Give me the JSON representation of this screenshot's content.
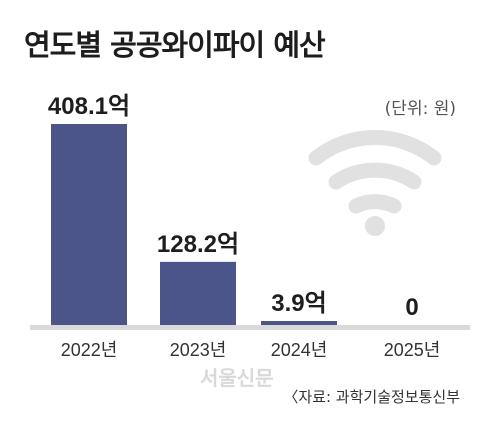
{
  "title": "연도별 공공와이파이 예산",
  "unit_label": "(단위: 원)",
  "source_label": "〈자료: 과학기술정보통신부",
  "watermark": "서울신문",
  "icon": "wifi-icon",
  "colors": {
    "bar": "#4b5589",
    "baseline": "#d9d9d9",
    "wifi": "#e1e1e1"
  },
  "chart_data": {
    "type": "bar",
    "title": "연도별 공공와이파이 예산",
    "categories": [
      "2022년",
      "2023년",
      "2024년",
      "2025년"
    ],
    "values": [
      408.1,
      128.2,
      3.9,
      0
    ],
    "value_labels": [
      "408.1억",
      "128.2억",
      "3.9억",
      "0"
    ],
    "xlabel": "",
    "ylabel": "",
    "ylim": [
      0,
      408.1
    ],
    "grid": false,
    "legend": "none"
  }
}
